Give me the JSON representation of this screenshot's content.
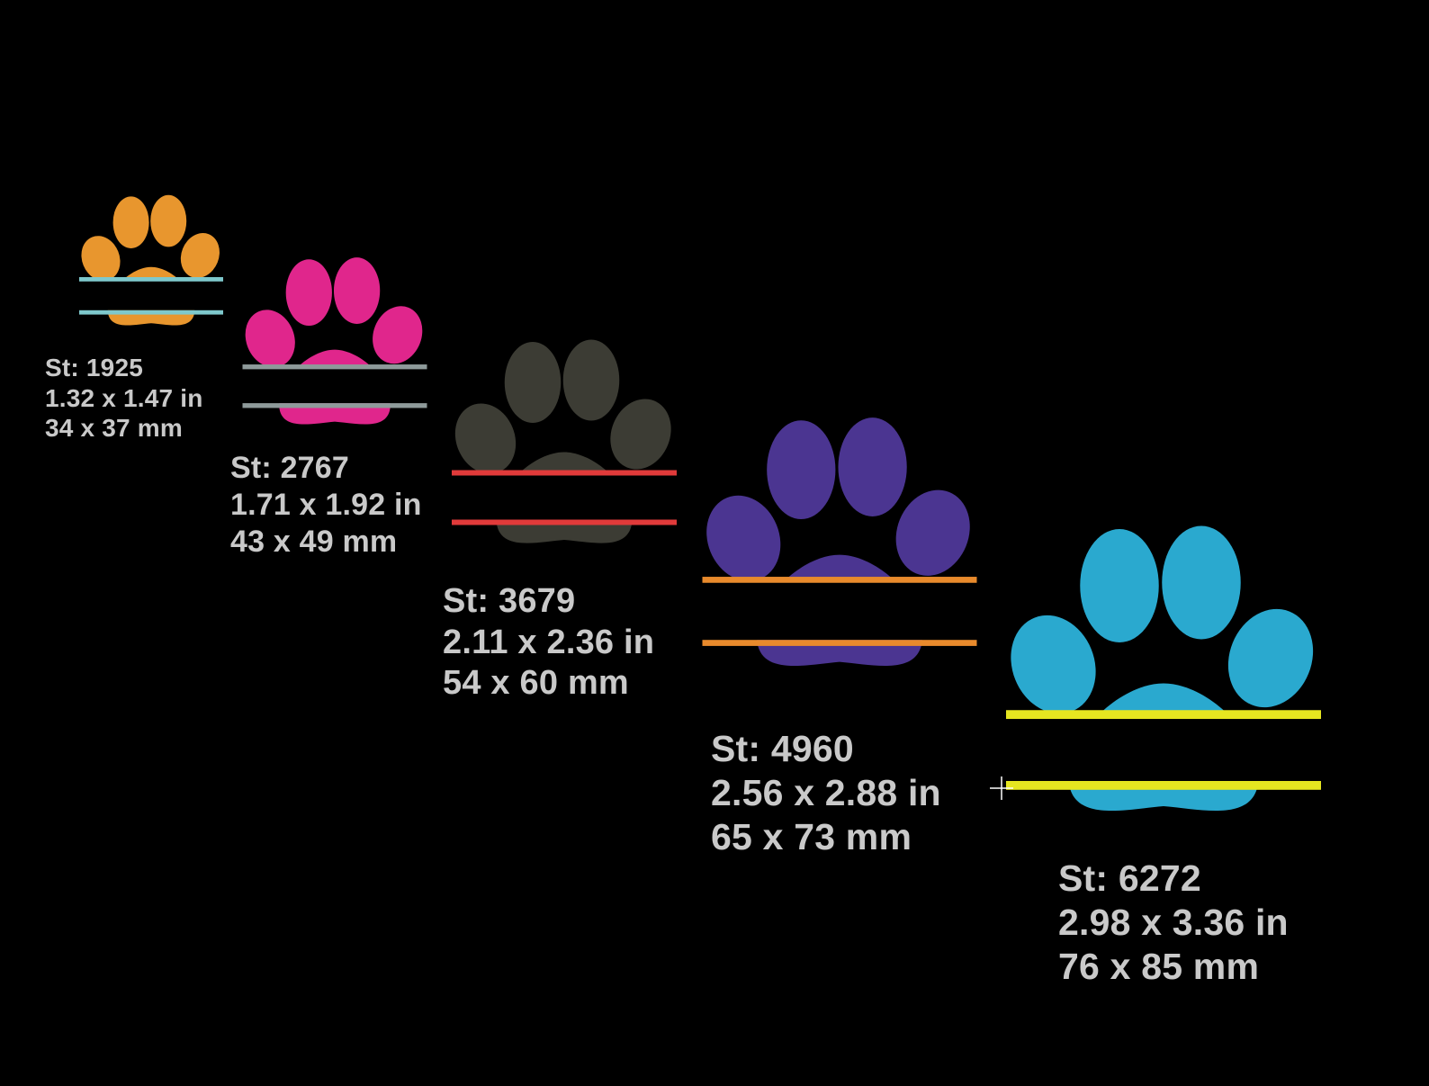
{
  "designs": [
    {
      "paw_color": "#e8962e",
      "line_color": "#7ec8cc",
      "stitches": "St: 1925",
      "size_in": "1.32 x 1.47 in",
      "size_mm": "34 x 37 mm"
    },
    {
      "paw_color": "#e0268c",
      "line_color": "#8e9a9a",
      "stitches": "St: 2767",
      "size_in": "1.71 x 1.92 in",
      "size_mm": "43 x 49 mm"
    },
    {
      "paw_color": "#3c3c34",
      "line_color": "#e03a3a",
      "stitches": "St: 3679",
      "size_in": "2.11 x 2.36 in",
      "size_mm": "54 x 60 mm"
    },
    {
      "paw_color": "#4b3591",
      "line_color": "#e88a2c",
      "stitches": "St: 4960",
      "size_in": "2.56 x 2.88 in",
      "size_mm": "65 x 73 mm"
    },
    {
      "paw_color": "#2aa9cf",
      "line_color": "#e6e620",
      "stitches": "St: 6272",
      "size_in": "2.98 x 3.36 in",
      "size_mm": "76 x 85 mm"
    }
  ],
  "cursor_icon": "crosshair-cursor-icon"
}
